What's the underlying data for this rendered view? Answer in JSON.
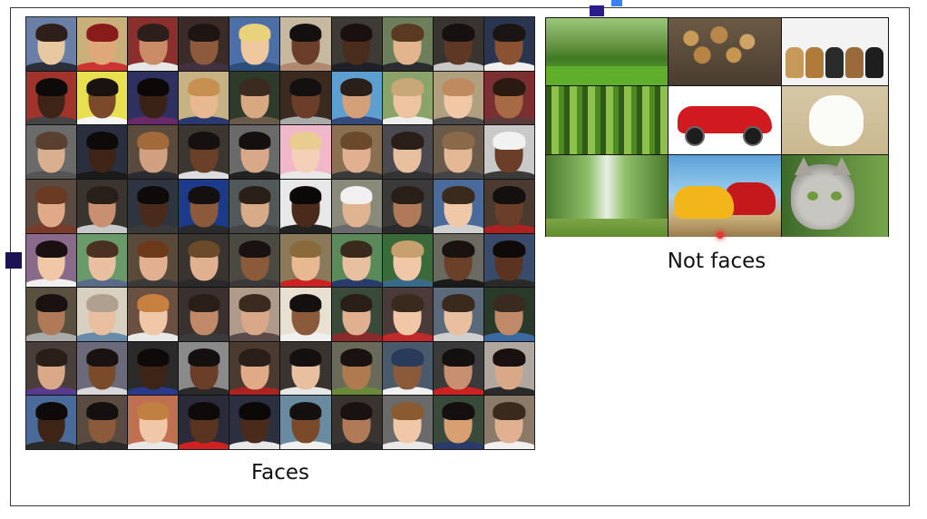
{
  "faces": {
    "caption": "Faces",
    "tiles": [
      [
        "#6a7fa6",
        "#e8c8a0",
        "#2e1f1a",
        "#2b2f3a"
      ],
      [
        "#c9b07a",
        "#e0a878",
        "#8a1b1b",
        "#cc3333"
      ],
      [
        "#8b2e2e",
        "#c98c66",
        "#2c1e1a",
        "#e6e6e6"
      ],
      [
        "#3a2a28",
        "#8d5a3c",
        "#1e1512",
        "#403040"
      ],
      [
        "#4d6fa8",
        "#f0c8a0",
        "#e8d27c",
        "#2d4d7a"
      ],
      [
        "#c7b9a0",
        "#6b3e2a",
        "#141010",
        "#b08a70"
      ],
      [
        "#3e3a36",
        "#4a2c1c",
        "#1a1010",
        "#202028"
      ],
      [
        "#6d7f5a",
        "#e4b48e",
        "#5a3a22",
        "#2c2c30"
      ],
      [
        "#3a3430",
        "#5e3824",
        "#161010",
        "#c8c8c8"
      ],
      [
        "#2a3550",
        "#8a5233",
        "#1a1414",
        "#f0f0f0"
      ],
      [
        "#a0342c",
        "#3e2416",
        "#0e0a0a",
        "#444"
      ],
      [
        "#e8e050",
        "#7a4a2a",
        "#1a1210",
        "#f6f6f6"
      ],
      [
        "#2e3060",
        "#3a2216",
        "#0c0808",
        "#6a2a6a"
      ],
      [
        "#c7b283",
        "#e8b890",
        "#c89050",
        "#2a3a70"
      ],
      [
        "#2e3a2a",
        "#d8a880",
        "#3a2a20",
        "#6a5a4a"
      ],
      [
        "#3a2a20",
        "#6a3e28",
        "#141010",
        "#aaa"
      ],
      [
        "#5d9fd1",
        "#d4a07a",
        "#2a1e18",
        "#334a7a"
      ],
      [
        "#8aa36a",
        "#eec4a0",
        "#c8a878",
        "#eee"
      ],
      [
        "#b0a080",
        "#f0c8a8",
        "#c08a60",
        "#4a4a4a"
      ],
      [
        "#7a3030",
        "#a86a44",
        "#2a1a12",
        "#5a3a3a"
      ],
      [
        "#6b6b6b",
        "#d8b090",
        "#5a4030",
        "#555"
      ],
      [
        "#2a2f40",
        "#3e2416",
        "#0e0a0a",
        "#1a1a1a"
      ],
      [
        "#5a4a3e",
        "#d0a080",
        "#a06a3a",
        "#2c2c30"
      ],
      [
        "#3c3630",
        "#6a4028",
        "#161010",
        "#ddd"
      ],
      [
        "#6a6a6a",
        "#d8a888",
        "#141010",
        "#222"
      ],
      [
        "#f0b8c8",
        "#f4d0b8",
        "#e8cc90",
        "#e8e8e8"
      ],
      [
        "#8a7050",
        "#e0b090",
        "#6a4a2a",
        "#3a3a3a"
      ],
      [
        "#4a4a50",
        "#e8c0a0",
        "#2a1e18",
        "#333"
      ],
      [
        "#6a5a4a",
        "#e4b894",
        "#8a6a48",
        "#444"
      ],
      [
        "#c9c9c9",
        "#6a3e28",
        "#f2f2f2",
        "#3a3a3a"
      ],
      [
        "#5a4a40",
        "#e0aa88",
        "#6a3a22",
        "#7a3a2a"
      ],
      [
        "#3a3430",
        "#c89070",
        "#2a1e18",
        "#c8c8c8"
      ],
      [
        "#2e3440",
        "#4a2a1a",
        "#0e0a0a",
        "#3a3a3a"
      ],
      [
        "#1d3a8a",
        "#8a5a3a",
        "#141010",
        "#2a2a2a"
      ],
      [
        "#50585a",
        "#d8aa88",
        "#2a1e18",
        "#444"
      ],
      [
        "#e8e8e8",
        "#4a2a1a",
        "#0c0808",
        "#222"
      ],
      [
        "#8a8a7a",
        "#e0b490",
        "#f0f0f0",
        "#6a6a6a"
      ],
      [
        "#3a3a3a",
        "#b07a58",
        "#2a1e18",
        "#2a2a2a"
      ],
      [
        "#4a6a9a",
        "#f0c8a8",
        "#3a2a1e",
        "#d0d0d0"
      ],
      [
        "#4a3a30",
        "#6a3e28",
        "#141010",
        "#aa2222"
      ],
      [
        "#8a6a8a",
        "#f0c8a8",
        "#1a1010",
        "#f0f0f0"
      ],
      [
        "#6a9a6a",
        "#e8c0a0",
        "#4a3020",
        "#5a6a8a"
      ],
      [
        "#5a4a3a",
        "#e0b090",
        "#6a3a1a",
        "#3a3a3a"
      ],
      [
        "#3a3430",
        "#e0b090",
        "#6a4a2a",
        "#2a2a2a"
      ],
      [
        "#4a4a40",
        "#8a5a3a",
        "#1a1212",
        "#3a3a3a"
      ],
      [
        "#8a7a5a",
        "#e8b890",
        "#8a6a3a",
        "#cc2222"
      ],
      [
        "#5a8a5a",
        "#e8c0a0",
        "#3a2a1e",
        "#2a3a6a"
      ],
      [
        "#3a6a3a",
        "#f0c8a8",
        "#c8a070",
        "#3a6a8a"
      ],
      [
        "#6a6a60",
        "#6a4028",
        "#1a1210",
        "#1a1a1a"
      ],
      [
        "#3a4a6a",
        "#5a3420",
        "#0e0a0a",
        "#2a2a2a"
      ],
      [
        "#5a5040",
        "#b07a58",
        "#1a1210",
        "#aaa"
      ],
      [
        "#d8d0c0",
        "#e8c0a0",
        "#b0a090",
        "#6a8aaa"
      ],
      [
        "#6a5040",
        "#f0c8a8",
        "#c88040",
        "#e8e8e8"
      ],
      [
        "#3a3030",
        "#c08a68",
        "#2a1e18",
        "#3a3a3a"
      ],
      [
        "#b09a8a",
        "#d8a888",
        "#3a2a20",
        "#5a4a4a"
      ],
      [
        "#e8e0d0",
        "#8a5a3a",
        "#141010",
        "#f0f0f0"
      ],
      [
        "#3a4a3a",
        "#e0b090",
        "#2a1e18",
        "#8a2a2a"
      ],
      [
        "#4a3a3a",
        "#f0c8a8",
        "#3a2a1e",
        "#c02a2a"
      ],
      [
        "#5a6a7a",
        "#e8c0a0",
        "#3a2a1e",
        "#cfcfcf"
      ],
      [
        "#2a3a2a",
        "#c08a68",
        "#3a2a20",
        "#3a6aa0"
      ],
      [
        "#4a3e3a",
        "#d8a888",
        "#2a1e18",
        "#5a3a8a"
      ],
      [
        "#6a6a7a",
        "#7a4a2a",
        "#1a1212",
        "#d8d8d8"
      ],
      [
        "#2a2a2a",
        "#3e2416",
        "#0e0a0a",
        "#2a3a8a"
      ],
      [
        "#8a8a8a",
        "#6a3e28",
        "#141010",
        "#2a2a2a"
      ],
      [
        "#4a3a30",
        "#e0aa88",
        "#2a1e18",
        "#aa2222"
      ],
      [
        "#3a3430",
        "#e8c0a0",
        "#141010",
        "#e8e8e8"
      ],
      [
        "#6a6a5a",
        "#b07a50",
        "#1a1210",
        "#6a8a3a"
      ],
      [
        "#4a5a6a",
        "#8a5a3a",
        "#2a3a5a",
        "#f0f0f0"
      ],
      [
        "#3a3a3a",
        "#c89070",
        "#141010",
        "#cc2222"
      ],
      [
        "#b0a8a0",
        "#d8a888",
        "#1a1010",
        "#2a2a2a"
      ],
      [
        "#4a6a9a",
        "#3e2416",
        "#0e0a0a",
        "#2a2a2a"
      ],
      [
        "#5a4a40",
        "#8a5a3a",
        "#141010",
        "#2a2a2a"
      ],
      [
        "#c07050",
        "#f0c8a8",
        "#c08040",
        "#e8e8e8"
      ],
      [
        "#2a2a3a",
        "#5a3420",
        "#0e0a0a",
        "#cc2222"
      ],
      [
        "#2a3040",
        "#4a2a1a",
        "#0c0808",
        "#e8e8e8"
      ],
      [
        "#6a8aa0",
        "#7a4a2a",
        "#141010",
        "#f0f0f0"
      ],
      [
        "#3a3430",
        "#b07a58",
        "#1a1210",
        "#2a2a2a"
      ],
      [
        "#6a6a6a",
        "#f0c8a8",
        "#8a5a30",
        "#e8e8e8"
      ],
      [
        "#3a4a3a",
        "#d8a070",
        "#141010",
        "#2a3a6a"
      ],
      [
        "#8a7a6a",
        "#e0b090",
        "#3a2a1e",
        "#f0f0f0"
      ]
    ]
  },
  "not_faces": {
    "caption": "Not faces",
    "tiles": [
      {
        "kind": "forest-1",
        "icon": "forest-path-photo"
      },
      {
        "kind": "logs",
        "icon": "firewood-photo"
      },
      {
        "kind": "puppies",
        "icon": "puppies-photo",
        "dog_colors": [
          "#c89a5a",
          "#b07a3a",
          "#2a2a2a",
          "#9a6a3a",
          "#1e1e1e"
        ]
      },
      {
        "kind": "forest-2",
        "icon": "bamboo-forest-photo"
      },
      {
        "kind": "car",
        "icon": "red-car-photo"
      },
      {
        "kind": "dog-white",
        "icon": "white-puppy-photo"
      },
      {
        "kind": "forest-3",
        "icon": "tree-lined-road-photo"
      },
      {
        "kind": "cars-cartoon",
        "icon": "cartoon-cars-photo"
      },
      {
        "kind": "cat",
        "icon": "gray-cat-photo"
      }
    ]
  },
  "colors": {
    "frame": "#3a3a3a",
    "pointer": "#e23a3a"
  }
}
